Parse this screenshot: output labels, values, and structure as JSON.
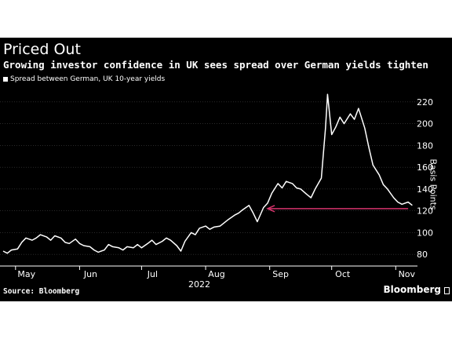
{
  "header": {
    "title": "Priced Out",
    "subtitle": "Growing investor confidence in UK sees spread over German yields tighten"
  },
  "footer": {
    "source": "Source: Bloomberg",
    "brand": "Bloomberg"
  },
  "colors": {
    "background": "#000000",
    "line": "#ffffff",
    "grid": "#555555",
    "annotation_arrow": "#d6336c"
  },
  "chart_data": {
    "type": "line",
    "title": "Priced Out",
    "subtitle": "Growing investor confidence in UK sees spread over German yields tighten",
    "ylabel": "Basis Points",
    "xlabel": "2022",
    "ylim": [
      70,
      230
    ],
    "yticks": [
      80,
      100,
      120,
      140,
      160,
      180,
      200,
      220
    ],
    "xlim": [
      "2022-04-25",
      "2022-11-10"
    ],
    "xticks": [
      {
        "label": "May",
        "date": "2022-05-01"
      },
      {
        "label": "Jun",
        "date": "2022-06-01"
      },
      {
        "label": "Jul",
        "date": "2022-07-01"
      },
      {
        "label": "Aug",
        "date": "2022-08-01"
      },
      {
        "label": "Sep",
        "date": "2022-09-01"
      },
      {
        "label": "Oct",
        "date": "2022-10-01"
      },
      {
        "label": "Nov",
        "date": "2022-11-01"
      }
    ],
    "year_label": "2022",
    "grid": true,
    "legend_position": "top-left",
    "series": [
      {
        "name": "Spread between German, UK 10-year yields",
        "points": [
          [
            "2022-04-25",
            83
          ],
          [
            "2022-04-27",
            81
          ],
          [
            "2022-04-29",
            84
          ],
          [
            "2022-05-02",
            85
          ],
          [
            "2022-05-04",
            91
          ],
          [
            "2022-05-06",
            95
          ],
          [
            "2022-05-09",
            93
          ],
          [
            "2022-05-11",
            95
          ],
          [
            "2022-05-13",
            98
          ],
          [
            "2022-05-16",
            96
          ],
          [
            "2022-05-18",
            93
          ],
          [
            "2022-05-20",
            97
          ],
          [
            "2022-05-23",
            95
          ],
          [
            "2022-05-25",
            91
          ],
          [
            "2022-05-27",
            90
          ],
          [
            "2022-05-30",
            94
          ],
          [
            "2022-06-01",
            90
          ],
          [
            "2022-06-03",
            88
          ],
          [
            "2022-06-06",
            87
          ],
          [
            "2022-06-08",
            84
          ],
          [
            "2022-06-10",
            82
          ],
          [
            "2022-06-13",
            84
          ],
          [
            "2022-06-15",
            89
          ],
          [
            "2022-06-17",
            87
          ],
          [
            "2022-06-20",
            86
          ],
          [
            "2022-06-22",
            84
          ],
          [
            "2022-06-24",
            87
          ],
          [
            "2022-06-27",
            86
          ],
          [
            "2022-06-29",
            89
          ],
          [
            "2022-07-01",
            86
          ],
          [
            "2022-07-04",
            90
          ],
          [
            "2022-07-06",
            93
          ],
          [
            "2022-07-08",
            89
          ],
          [
            "2022-07-11",
            92
          ],
          [
            "2022-07-13",
            95
          ],
          [
            "2022-07-15",
            93
          ],
          [
            "2022-07-18",
            88
          ],
          [
            "2022-07-20",
            83
          ],
          [
            "2022-07-22",
            92
          ],
          [
            "2022-07-25",
            100
          ],
          [
            "2022-07-27",
            98
          ],
          [
            "2022-07-29",
            104
          ],
          [
            "2022-08-01",
            106
          ],
          [
            "2022-08-03",
            103
          ],
          [
            "2022-08-05",
            105
          ],
          [
            "2022-08-08",
            106
          ],
          [
            "2022-08-10",
            109
          ],
          [
            "2022-08-12",
            112
          ],
          [
            "2022-08-15",
            116
          ],
          [
            "2022-08-17",
            118
          ],
          [
            "2022-08-19",
            121
          ],
          [
            "2022-08-22",
            125
          ],
          [
            "2022-08-24",
            118
          ],
          [
            "2022-08-26",
            110
          ],
          [
            "2022-08-29",
            123
          ],
          [
            "2022-08-31",
            127
          ],
          [
            "2022-09-02",
            136
          ],
          [
            "2022-09-05",
            145
          ],
          [
            "2022-09-07",
            141
          ],
          [
            "2022-09-09",
            147
          ],
          [
            "2022-09-12",
            145
          ],
          [
            "2022-09-14",
            141
          ],
          [
            "2022-09-16",
            140
          ],
          [
            "2022-09-19",
            135
          ],
          [
            "2022-09-21",
            132
          ],
          [
            "2022-09-23",
            140
          ],
          [
            "2022-09-26",
            150
          ],
          [
            "2022-09-28",
            196
          ],
          [
            "2022-09-29",
            227
          ],
          [
            "2022-10-01",
            190
          ],
          [
            "2022-10-03",
            197
          ],
          [
            "2022-10-05",
            206
          ],
          [
            "2022-10-07",
            200
          ],
          [
            "2022-10-10",
            209
          ],
          [
            "2022-10-12",
            204
          ],
          [
            "2022-10-14",
            214
          ],
          [
            "2022-10-17",
            196
          ],
          [
            "2022-10-19",
            178
          ],
          [
            "2022-10-21",
            162
          ],
          [
            "2022-10-24",
            153
          ],
          [
            "2022-10-26",
            144
          ],
          [
            "2022-10-28",
            140
          ],
          [
            "2022-10-31",
            132
          ],
          [
            "2022-11-02",
            128
          ],
          [
            "2022-11-04",
            126
          ],
          [
            "2022-11-07",
            128
          ],
          [
            "2022-11-09",
            125
          ]
        ]
      }
    ],
    "annotations": [
      {
        "type": "arrow",
        "y": 122,
        "from": "2022-11-07",
        "to": "2022-08-31"
      }
    ]
  }
}
